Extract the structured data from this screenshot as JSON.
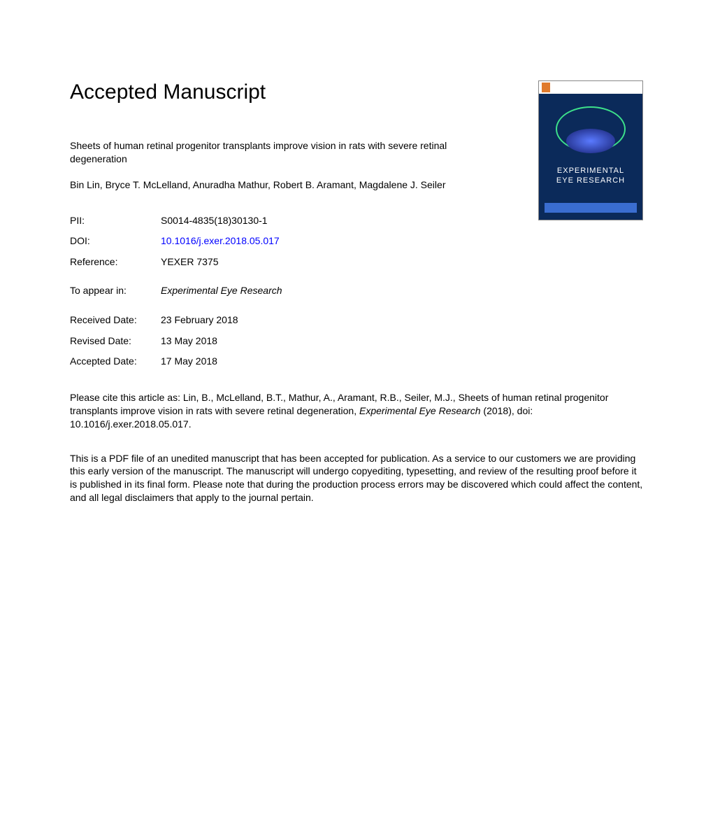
{
  "heading": "Accepted Manuscript",
  "article_title": "Sheets of human retinal progenitor transplants improve vision in rats with severe retinal degeneration",
  "authors": "Bin Lin, Bryce T. McLelland, Anuradha Mathur, Robert B. Aramant, Magdalene J. Seiler",
  "meta": {
    "pii_label": "PII:",
    "pii_value": "S0014-4835(18)30130-1",
    "doi_label": "DOI:",
    "doi_value": "10.1016/j.exer.2018.05.017",
    "reference_label": "Reference:",
    "reference_value": "YEXER 7375",
    "appear_label": "To appear in:",
    "appear_value": "Experimental Eye Research",
    "received_label": "Received Date:",
    "received_value": "23 February 2018",
    "revised_label": "Revised Date:",
    "revised_value": "13 May 2018",
    "accepted_label": "Accepted Date:",
    "accepted_value": "17 May 2018"
  },
  "citation": {
    "prefix": "Please cite this article as: Lin, B., McLelland, B.T., Mathur, A., Aramant, R.B., Seiler, M.J., Sheets of human retinal progenitor transplants improve vision in rats with severe retinal degeneration, ",
    "journal": "Experimental Eye Research",
    "suffix": " (2018), doi: 10.1016/j.exer.2018.05.017."
  },
  "disclaimer": "This is a PDF file of an unedited manuscript that has been accepted for publication. As a service to our customers we are providing this early version of the manuscript. The manuscript will undergo copyediting, typesetting, and review of the resulting proof before it is published in its final form. Please note that during the production process errors may be discovered which could affect the content, and all legal disclaimers that apply to the journal pertain.",
  "cover": {
    "journal_line1": "EXPERIMENTAL",
    "journal_line2": "EYE RESEARCH",
    "background_color": "#0b2a5a",
    "accent_color": "#3a6dd0"
  },
  "colors": {
    "text": "#000000",
    "link": "#0000ff",
    "background": "#ffffff"
  }
}
